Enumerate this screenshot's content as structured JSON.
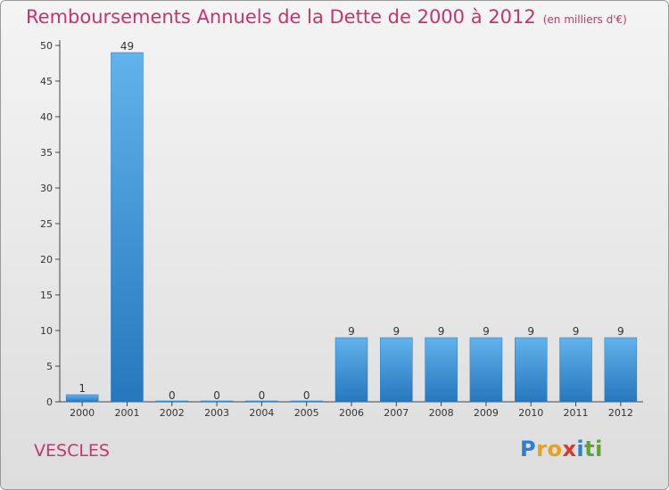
{
  "title": "Remboursements Annuels de la Dette de 2000 à 2012",
  "unit": "(en milliers d'€)",
  "commune": "VESCLES",
  "logo": {
    "text": "Proxiti",
    "letters": [
      {
        "ch": "P",
        "color": "#2a7fd4"
      },
      {
        "ch": "r",
        "color": "#e8a21a"
      },
      {
        "ch": "o",
        "color": "#e8a21a"
      },
      {
        "ch": "x",
        "color": "#d93a2b"
      },
      {
        "ch": "i",
        "color": "#2a7fd4"
      },
      {
        "ch": "t",
        "color": "#5aa632"
      },
      {
        "ch": "i",
        "color": "#5aa632"
      }
    ]
  },
  "colors": {
    "bar": "#3d8fd6",
    "bar_light": "#62b2ec",
    "bar_dark": "#2677bd",
    "title": "#c8336f"
  },
  "chart_data": {
    "type": "bar",
    "categories": [
      "2000",
      "2001",
      "2002",
      "2003",
      "2004",
      "2005",
      "2006",
      "2007",
      "2008",
      "2009",
      "2010",
      "2011",
      "2012"
    ],
    "values": [
      1,
      49,
      0,
      0,
      0,
      0,
      9,
      9,
      9,
      9,
      9,
      9,
      9
    ],
    "data_labels": [
      "1",
      "49",
      "0",
      "0",
      "0",
      "0",
      "9",
      "9",
      "9",
      "9",
      "9",
      "9",
      "9"
    ],
    "yticks": [
      0,
      5,
      10,
      15,
      20,
      25,
      30,
      35,
      40,
      45,
      50
    ],
    "ylim": [
      0,
      50
    ],
    "grid": false
  }
}
